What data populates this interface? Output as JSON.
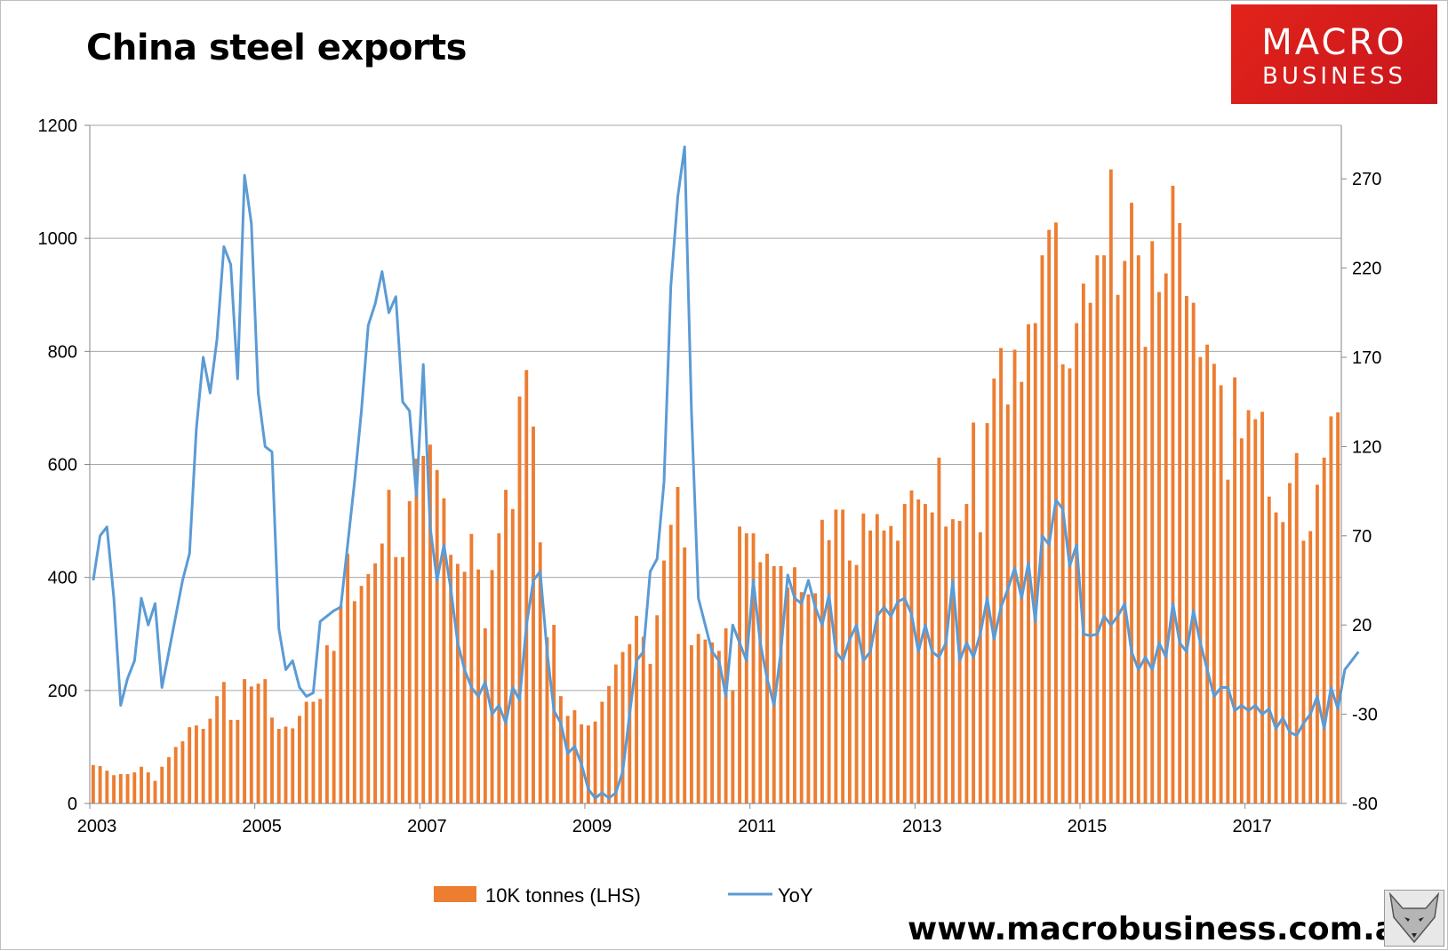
{
  "title": "China steel exports",
  "logo": {
    "line1": "MACRO",
    "line2": "BUSINESS"
  },
  "website": "www.macrobusiness.com.au",
  "chart_data": {
    "type": "bar+line",
    "title": "China steel exports",
    "x_tick_labels": [
      "2003",
      "2005",
      "2007",
      "2009",
      "2011",
      "2013",
      "2015",
      "2017"
    ],
    "y_left": {
      "ylim": [
        0,
        1200
      ],
      "ticks": [
        0,
        200,
        400,
        600,
        800,
        1000,
        1200
      ]
    },
    "y_right": {
      "ylim": [
        -80,
        300
      ],
      "ticks": [
        -80,
        -30,
        20,
        70,
        120,
        170,
        220,
        270
      ]
    },
    "grid": true,
    "legend_position": "bottom",
    "colors": {
      "bars": "#ed7d31",
      "line": "#5b9bd5"
    },
    "series": [
      {
        "name": "10K tonnes (LHS)",
        "type": "bar",
        "axis": "left",
        "values": [
          68,
          66,
          58,
          50,
          52,
          52,
          55,
          65,
          55,
          40,
          65,
          82,
          100,
          110,
          135,
          138,
          132,
          150,
          190,
          215,
          148,
          148,
          220,
          207,
          212,
          220,
          152,
          132,
          136,
          133,
          155,
          180,
          180,
          185,
          280,
          270,
          350,
          442,
          358,
          385,
          406,
          425,
          460,
          555,
          436,
          436,
          535,
          610,
          615,
          635,
          590,
          540,
          440,
          424,
          410,
          477,
          414,
          310,
          413,
          478,
          555,
          521,
          720,
          767,
          667,
          462,
          294,
          316,
          190,
          155,
          165,
          140,
          138,
          145,
          180,
          208,
          246,
          268,
          282,
          332,
          295,
          247,
          333,
          430,
          493,
          560,
          453,
          280,
          300,
          290,
          285,
          270,
          310,
          200,
          490,
          478,
          478,
          427,
          442,
          420,
          420,
          382,
          418,
          374,
          370,
          372,
          502,
          466,
          520,
          520,
          430,
          422,
          513,
          483,
          512,
          483,
          491,
          465,
          530,
          554,
          538,
          530,
          515,
          612,
          490,
          503,
          500,
          530,
          674,
          480,
          673,
          752,
          806,
          706,
          803,
          746,
          848,
          850,
          970,
          1015,
          1028,
          777,
          770,
          850,
          920,
          886,
          970,
          970,
          1122,
          900,
          960,
          1063,
          970,
          808,
          995,
          905,
          938,
          1093,
          1027,
          898,
          886,
          790,
          812,
          778,
          740,
          573,
          754,
          646,
          696,
          680,
          693,
          543,
          515,
          498,
          567,
          620,
          465,
          482,
          564,
          612,
          685,
          692
        ]
      },
      {
        "name": "YoY",
        "type": "line",
        "axis": "right",
        "values": [
          45,
          70,
          75,
          35,
          -25,
          -10,
          0,
          35,
          20,
          32,
          -15,
          5,
          25,
          45,
          60,
          130,
          170,
          150,
          180,
          232,
          222,
          158,
          272,
          245,
          150,
          120,
          117,
          18,
          -5,
          0,
          -15,
          -20,
          -18,
          22,
          25,
          28,
          30,
          65,
          100,
          140,
          188,
          200,
          218,
          195,
          204,
          145,
          140,
          92,
          166,
          75,
          45,
          65,
          40,
          10,
          -5,
          -15,
          -20,
          -12,
          -30,
          -25,
          -35,
          -15,
          -22,
          20,
          45,
          50,
          5,
          -28,
          -35,
          -52,
          -48,
          -58,
          -72,
          -77,
          -74,
          -77,
          -74,
          -62,
          -30,
          0,
          5,
          50,
          57,
          100,
          210,
          260,
          288,
          140,
          35,
          20,
          5,
          0,
          -20,
          20,
          10,
          0,
          45,
          10,
          -10,
          -25,
          5,
          48,
          35,
          32,
          45,
          30,
          20,
          37,
          5,
          0,
          12,
          20,
          0,
          5,
          25,
          30,
          25,
          33,
          35,
          26,
          5,
          20,
          5,
          2,
          10,
          45,
          0,
          10,
          2,
          15,
          35,
          12,
          30,
          40,
          52,
          35,
          55,
          22,
          70,
          65,
          90,
          85,
          53,
          65,
          15,
          14,
          15,
          25,
          20,
          25,
          32,
          5,
          -5,
          2,
          -5,
          10,
          2,
          32,
          10,
          5,
          28,
          10,
          -5,
          -20,
          -15,
          -15,
          -28,
          -25,
          -28,
          -25,
          -30,
          -27,
          -38,
          -32,
          -40,
          -42,
          -35,
          -30,
          -20,
          -38,
          -15,
          -27,
          -5,
          0,
          5
        ]
      }
    ]
  }
}
